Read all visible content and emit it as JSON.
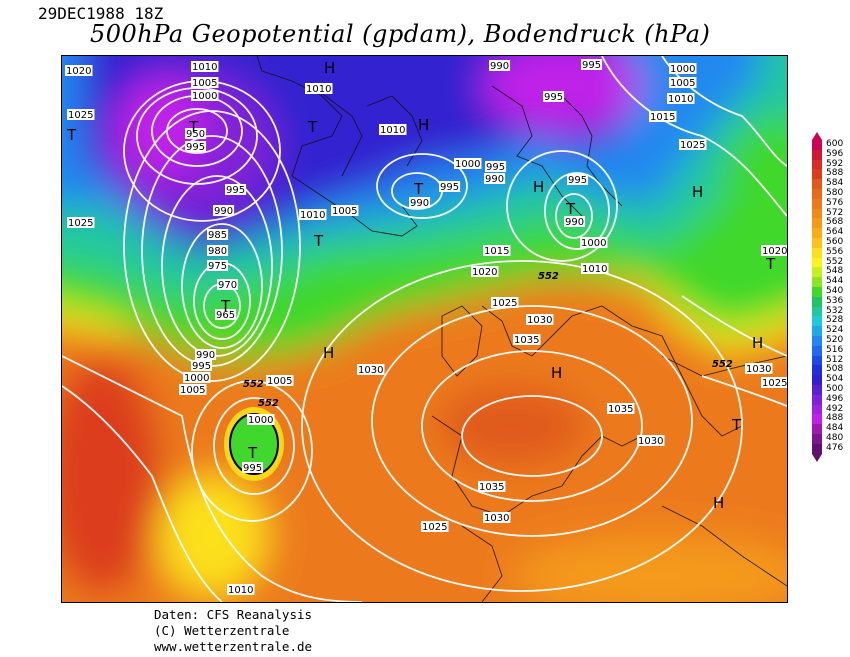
{
  "header": {
    "date": "29DEC1988 18Z",
    "title": "500hPa Geopotential (gpdam), Bodendruck (hPa)"
  },
  "legend": {
    "values": [
      "600",
      "596",
      "592",
      "588",
      "584",
      "580",
      "576",
      "572",
      "568",
      "564",
      "560",
      "556",
      "552",
      "548",
      "544",
      "540",
      "536",
      "532",
      "528",
      "524",
      "520",
      "516",
      "512",
      "508",
      "504",
      "500",
      "496",
      "492",
      "488",
      "484",
      "480",
      "476"
    ],
    "colors": [
      "#cc0055",
      "#cc1a33",
      "#d82a2a",
      "#dc3c1c",
      "#e05a1c",
      "#e66a1c",
      "#ec7a1c",
      "#f08a1a",
      "#f49a1a",
      "#f8ac18",
      "#fac21a",
      "#fce01a",
      "#f8f41c",
      "#c8f020",
      "#8ce424",
      "#40d82c",
      "#20c460",
      "#20c8a0",
      "#20c8d8",
      "#20a8e8",
      "#2088f0",
      "#2068f0",
      "#2048e8",
      "#2030d8",
      "#3020d0",
      "#5820d0",
      "#8020d8",
      "#a020e0",
      "#c020e8",
      "#a018b0",
      "#7c1490",
      "#601070"
    ]
  },
  "map": {
    "isobar_labels": [
      "1020",
      "1025",
      "1010",
      "1005",
      "1000",
      "950",
      "995",
      "995",
      "990",
      "985",
      "980",
      "975",
      "970",
      "965",
      "990",
      "995",
      "1000",
      "1005",
      "1005",
      "1000",
      "995",
      "1010",
      "1010",
      "990",
      "995",
      "1000",
      "995",
      "990",
      "995",
      "990",
      "1000",
      "1005",
      "990",
      "995",
      "995",
      "1000",
      "1005",
      "1010",
      "1015",
      "1010",
      "1025",
      "1010",
      "1015",
      "1020",
      "1025",
      "1030",
      "1035",
      "1025",
      "1030",
      "1035",
      "1030",
      "1035",
      "1030",
      "1025",
      "1020",
      "1010",
      "1025",
      "1030"
    ],
    "centers": [
      "H",
      "T",
      "T",
      "H",
      "T",
      "T",
      "T",
      "H",
      "H",
      "T",
      "H",
      "T",
      "T",
      "H",
      "H",
      "T",
      "H",
      "H",
      "H",
      "T",
      "H"
    ],
    "contour_552_label": "552"
  },
  "credits": {
    "line1": "Daten: CFS Reanalysis",
    "line2": "(C) Wetterzentrale",
    "line3": "www.wetterzentrale.de"
  }
}
